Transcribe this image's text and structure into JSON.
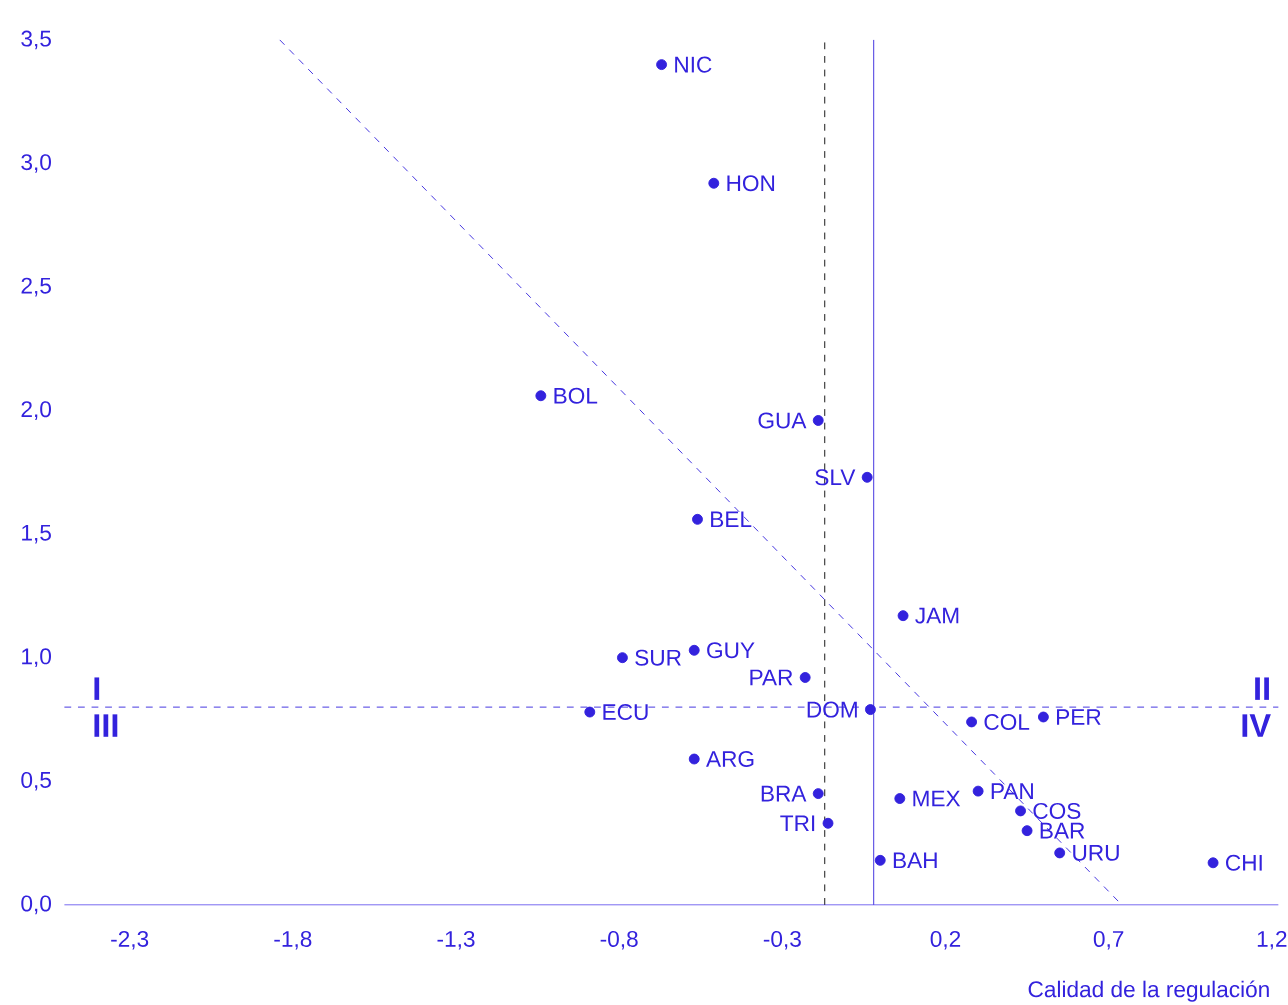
{
  "chart_data": {
    "type": "scatter",
    "xlabel": "Calidad de la regulación",
    "xlim": [
      -2.5,
      1.22
    ],
    "ylim": [
      0,
      3.5
    ],
    "xticks": [
      {
        "value": -2.3,
        "label": "-2,3"
      },
      {
        "value": -1.8,
        "label": "-1,8"
      },
      {
        "value": -1.3,
        "label": "-1,3"
      },
      {
        "value": -0.8,
        "label": "-0,8"
      },
      {
        "value": -0.3,
        "label": "-0,3"
      },
      {
        "value": 0.2,
        "label": "0,2"
      },
      {
        "value": 0.7,
        "label": "0,7"
      },
      {
        "value": 1.2,
        "label": "1,2"
      }
    ],
    "yticks": [
      {
        "value": 0,
        "label": "0,0"
      },
      {
        "value": 0.5,
        "label": "0,5"
      },
      {
        "value": 1,
        "label": "1,0"
      },
      {
        "value": 1.5,
        "label": "1,5"
      },
      {
        "value": 2,
        "label": "2,0"
      },
      {
        "value": 2.5,
        "label": "2,5"
      },
      {
        "value": 3,
        "label": "3,0"
      },
      {
        "value": 3.5,
        "label": "3,5"
      }
    ],
    "series": [
      {
        "type": "scatter",
        "color": "#3322dd",
        "marker": "circle",
        "x": [
          -0.67,
          -0.51,
          -1.04,
          -0.19,
          -0.04,
          -0.56,
          0.07,
          -0.79,
          -0.57,
          -0.23,
          -0.89,
          -0.03,
          0.28,
          0.5,
          -0.57,
          0.3,
          -0.19,
          0.06,
          0.43,
          -0.16,
          0.45,
          0.55,
          0.0,
          1.02
        ],
        "values": [
          3.4,
          2.92,
          2.06,
          1.96,
          1.73,
          1.56,
          1.17,
          1.0,
          1.03,
          0.92,
          0.78,
          0.79,
          0.74,
          0.76,
          0.59,
          0.46,
          0.45,
          0.43,
          0.38,
          0.33,
          0.3,
          0.21,
          0.18,
          0.17
        ]
      },
      {
        "type": "line",
        "color": "#3322dd",
        "line_style": "dashed",
        "marker": "none",
        "x": [
          -1.84,
          0.74
        ],
        "values": [
          3.5,
          0
        ]
      }
    ],
    "ref_lines": [
      {
        "axis": "y",
        "value": 0.8,
        "color": "#3322dd",
        "line_style": "dashed"
      },
      {
        "axis": "x",
        "value": -0.17,
        "color": "#000000",
        "line_style": "dashed"
      },
      {
        "axis": "x",
        "value": -0.02,
        "color": "#3322dd",
        "line_style": "solid"
      }
    ],
    "annotations": [
      "I",
      "II",
      "III",
      "IV",
      {
        "text": "NIC",
        "x": -0.67,
        "y": 3.4
      },
      {
        "text": "HON",
        "x": -0.51,
        "y": 2.92
      },
      {
        "text": "BOL",
        "x": -1.04,
        "y": 2.06
      },
      {
        "text": "GUA",
        "x": -0.19,
        "y": 1.96
      },
      {
        "text": "SLV",
        "x": -0.04,
        "y": 1.73
      },
      {
        "text": "BEL",
        "x": -0.56,
        "y": 1.56
      },
      {
        "text": "JAM",
        "x": 0.07,
        "y": 1.17
      },
      {
        "text": "SUR",
        "x": -0.79,
        "y": 1.0
      },
      {
        "text": "GUY",
        "x": -0.57,
        "y": 1.03
      },
      {
        "text": "PAR",
        "x": -0.23,
        "y": 0.92
      },
      {
        "text": "ECU",
        "x": -0.89,
        "y": 0.78
      },
      {
        "text": "DOM",
        "x": -0.03,
        "y": 0.79
      },
      {
        "text": "COL",
        "x": 0.28,
        "y": 0.74
      },
      {
        "text": "PER",
        "x": 0.5,
        "y": 0.76
      },
      {
        "text": "ARG",
        "x": -0.57,
        "y": 0.59
      },
      {
        "text": "PAN",
        "x": 0.3,
        "y": 0.46
      },
      {
        "text": "BRA",
        "x": -0.19,
        "y": 0.45
      },
      {
        "text": "MEX",
        "x": 0.06,
        "y": 0.43
      },
      {
        "text": "COS",
        "x": 0.43,
        "y": 0.38
      },
      {
        "text": "TRI",
        "x": -0.16,
        "y": 0.33
      },
      {
        "text": "BAR",
        "x": 0.45,
        "y": 0.3
      },
      {
        "text": "URU",
        "x": 0.55,
        "y": 0.21
      },
      {
        "text": "BAH",
        "x": 0.0,
        "y": 0.18
      },
      {
        "text": "CHI",
        "x": 1.02,
        "y": 0.17
      }
    ]
  }
}
